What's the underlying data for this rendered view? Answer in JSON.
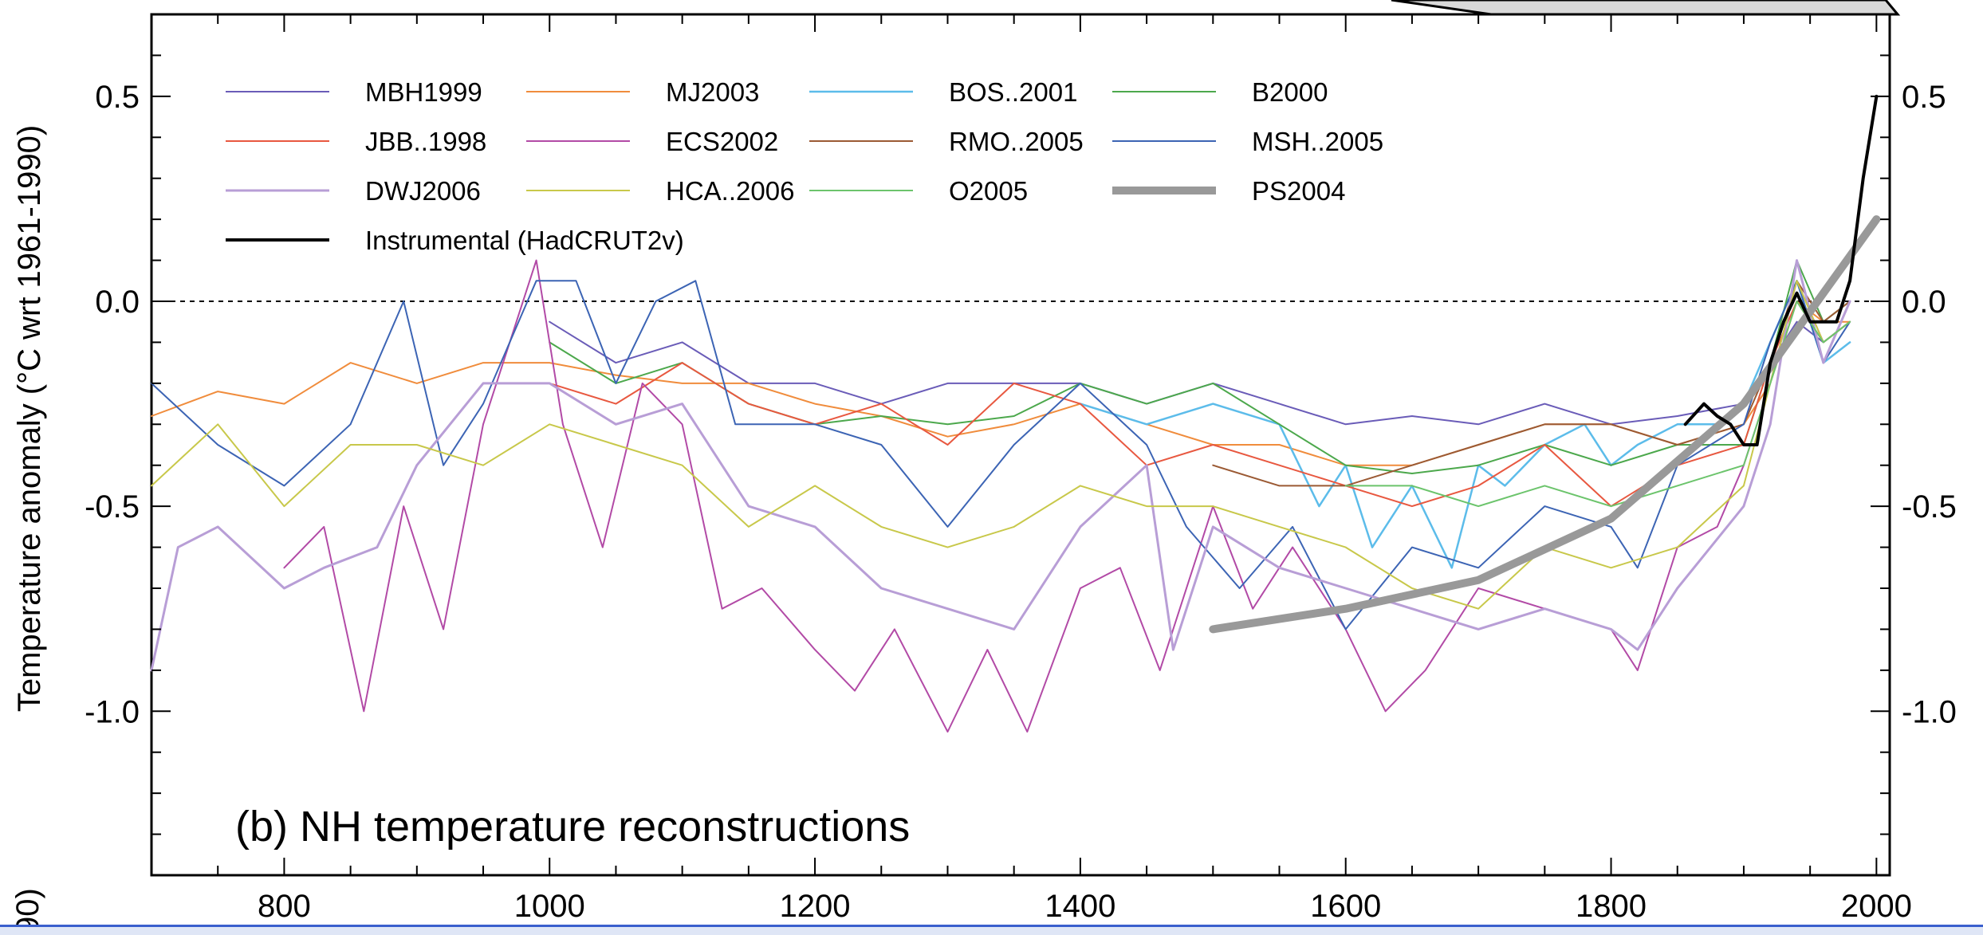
{
  "chart_data": {
    "type": "line",
    "title": "",
    "panel_label": "(b) NH temperature reconstructions",
    "ylabel": "Temperature anomaly  (°C wrt 1961-1990)",
    "xlabel": "",
    "xlim": [
      700,
      2010
    ],
    "ylim": [
      -1.4,
      0.7
    ],
    "x_ticks": [
      800,
      1000,
      1200,
      1400,
      1600,
      1800,
      2000
    ],
    "x_tick_labels": [
      "800",
      "1000",
      "1200",
      "1400",
      "1600",
      "1800",
      "2000"
    ],
    "y_ticks": [
      0.5,
      0.0,
      -0.5,
      -1.0
    ],
    "y_tick_labels": [
      "0.5",
      "0.0",
      "-0.5",
      "-1.0"
    ],
    "zero_line": true,
    "legend_position": "top-left",
    "series": [
      {
        "name": "MBH1999",
        "color": "#6a5cb8",
        "width": 2,
        "x": [
          1000,
          1050,
          1100,
          1150,
          1200,
          1250,
          1300,
          1350,
          1400,
          1450,
          1500,
          1550,
          1600,
          1650,
          1700,
          1750,
          1800,
          1850,
          1900,
          1920,
          1940,
          1960,
          1980
        ],
        "y": [
          -0.05,
          -0.15,
          -0.1,
          -0.2,
          -0.2,
          -0.25,
          -0.2,
          -0.2,
          -0.2,
          -0.25,
          -0.2,
          -0.25,
          -0.3,
          -0.28,
          -0.3,
          -0.25,
          -0.3,
          -0.28,
          -0.25,
          -0.15,
          -0.05,
          -0.1,
          -0.05
        ]
      },
      {
        "name": "MJ2003",
        "color": "#f08c3c",
        "width": 2,
        "x": [
          700,
          750,
          800,
          850,
          900,
          950,
          1000,
          1050,
          1100,
          1150,
          1200,
          1250,
          1300,
          1350,
          1400,
          1450,
          1500,
          1550,
          1600,
          1650,
          1700,
          1750,
          1800,
          1850,
          1900,
          1920,
          1940,
          1960,
          1980
        ],
        "y": [
          -0.28,
          -0.22,
          -0.25,
          -0.15,
          -0.2,
          -0.15,
          -0.15,
          -0.18,
          -0.2,
          -0.2,
          -0.25,
          -0.28,
          -0.33,
          -0.3,
          -0.25,
          -0.3,
          -0.35,
          -0.35,
          -0.4,
          -0.4,
          -0.35,
          -0.3,
          -0.3,
          -0.35,
          -0.3,
          -0.2,
          0.0,
          -0.05,
          -0.05
        ]
      },
      {
        "name": "BOS..2001",
        "color": "#5cbcea",
        "width": 2.5,
        "x": [
          1400,
          1450,
          1500,
          1550,
          1580,
          1600,
          1620,
          1650,
          1680,
          1700,
          1720,
          1750,
          1780,
          1800,
          1820,
          1850,
          1880,
          1900,
          1920,
          1940,
          1960,
          1980
        ],
        "y": [
          -0.25,
          -0.3,
          -0.25,
          -0.3,
          -0.5,
          -0.4,
          -0.6,
          -0.45,
          -0.65,
          -0.4,
          -0.45,
          -0.35,
          -0.3,
          -0.4,
          -0.35,
          -0.3,
          -0.3,
          -0.25,
          -0.1,
          0.05,
          -0.15,
          -0.1
        ]
      },
      {
        "name": "B2000",
        "color": "#4ca84c",
        "width": 2,
        "x": [
          1000,
          1050,
          1100,
          1150,
          1200,
          1250,
          1300,
          1350,
          1400,
          1450,
          1500,
          1550,
          1600,
          1650,
          1700,
          1750,
          1800,
          1850,
          1900,
          1920,
          1940,
          1960,
          1980
        ],
        "y": [
          -0.1,
          -0.2,
          -0.15,
          -0.25,
          -0.3,
          -0.28,
          -0.3,
          -0.28,
          -0.2,
          -0.25,
          -0.2,
          -0.3,
          -0.4,
          -0.42,
          -0.4,
          -0.35,
          -0.4,
          -0.35,
          -0.35,
          -0.15,
          0.1,
          -0.05,
          0.0
        ]
      },
      {
        "name": "JBB..1998",
        "color": "#e85840",
        "width": 2,
        "x": [
          1000,
          1050,
          1100,
          1150,
          1200,
          1250,
          1300,
          1350,
          1400,
          1450,
          1500,
          1550,
          1600,
          1650,
          1700,
          1750,
          1800,
          1850,
          1900,
          1920,
          1940,
          1960,
          1980
        ],
        "y": [
          -0.2,
          -0.25,
          -0.15,
          -0.25,
          -0.3,
          -0.25,
          -0.35,
          -0.2,
          -0.25,
          -0.4,
          -0.35,
          -0.4,
          -0.45,
          -0.5,
          -0.45,
          -0.35,
          -0.5,
          -0.4,
          -0.35,
          -0.15,
          0.0,
          -0.1,
          -0.05
        ]
      },
      {
        "name": "ECS2002",
        "color": "#b24aa6",
        "width": 2,
        "x": [
          800,
          830,
          860,
          890,
          920,
          950,
          990,
          1010,
          1040,
          1070,
          1100,
          1130,
          1160,
          1200,
          1230,
          1260,
          1300,
          1330,
          1360,
          1400,
          1430,
          1460,
          1500,
          1530,
          1560,
          1600,
          1630,
          1660,
          1700,
          1750,
          1800,
          1820,
          1850,
          1880,
          1900,
          1920,
          1940,
          1960,
          1980
        ],
        "y": [
          -0.65,
          -0.55,
          -1.0,
          -0.5,
          -0.8,
          -0.3,
          0.1,
          -0.3,
          -0.6,
          -0.2,
          -0.3,
          -0.75,
          -0.7,
          -0.85,
          -0.95,
          -0.8,
          -1.05,
          -0.85,
          -1.05,
          -0.7,
          -0.65,
          -0.9,
          -0.5,
          -0.75,
          -0.6,
          -0.8,
          -1.0,
          -0.9,
          -0.7,
          -0.75,
          -0.8,
          -0.9,
          -0.6,
          -0.55,
          -0.4,
          -0.2,
          0.05,
          -0.1,
          -0.05
        ]
      },
      {
        "name": "RMO..2005",
        "color": "#9b5a34",
        "width": 2,
        "x": [
          1500,
          1550,
          1600,
          1650,
          1700,
          1750,
          1800,
          1850,
          1900,
          1920,
          1940,
          1960,
          1980
        ],
        "y": [
          -0.4,
          -0.45,
          -0.45,
          -0.4,
          -0.35,
          -0.3,
          -0.3,
          -0.35,
          -0.3,
          -0.15,
          0.05,
          -0.05,
          0.0
        ]
      },
      {
        "name": "MSH..2005",
        "color": "#3c64b4",
        "width": 2,
        "x": [
          700,
          750,
          800,
          850,
          890,
          920,
          950,
          990,
          1020,
          1050,
          1080,
          1110,
          1140,
          1200,
          1250,
          1300,
          1350,
          1400,
          1450,
          1480,
          1520,
          1560,
          1600,
          1650,
          1700,
          1750,
          1800,
          1820,
          1850,
          1900,
          1920,
          1940,
          1960,
          1980
        ],
        "y": [
          -0.2,
          -0.35,
          -0.45,
          -0.3,
          0.0,
          -0.4,
          -0.25,
          0.05,
          0.05,
          -0.2,
          0.0,
          0.05,
          -0.3,
          -0.3,
          -0.35,
          -0.55,
          -0.35,
          -0.2,
          -0.35,
          -0.55,
          -0.7,
          -0.55,
          -0.8,
          -0.6,
          -0.65,
          -0.5,
          -0.55,
          -0.65,
          -0.4,
          -0.3,
          -0.1,
          0.05,
          -0.15,
          -0.05
        ]
      },
      {
        "name": "DWJ2006",
        "color": "#b89ed6",
        "width": 3,
        "x": [
          700,
          720,
          750,
          800,
          830,
          870,
          900,
          950,
          1000,
          1050,
          1100,
          1150,
          1200,
          1250,
          1300,
          1350,
          1400,
          1450,
          1470,
          1500,
          1550,
          1600,
          1650,
          1700,
          1750,
          1800,
          1820,
          1850,
          1900,
          1920,
          1940,
          1960,
          1980
        ],
        "y": [
          -0.9,
          -0.6,
          -0.55,
          -0.7,
          -0.65,
          -0.6,
          -0.4,
          -0.2,
          -0.2,
          -0.3,
          -0.25,
          -0.5,
          -0.55,
          -0.7,
          -0.75,
          -0.8,
          -0.55,
          -0.4,
          -0.85,
          -0.55,
          -0.65,
          -0.7,
          -0.75,
          -0.8,
          -0.75,
          -0.8,
          -0.85,
          -0.7,
          -0.5,
          -0.3,
          0.1,
          -0.15,
          0.0
        ]
      },
      {
        "name": "HCA..2006",
        "color": "#c8c84a",
        "width": 2,
        "x": [
          700,
          750,
          800,
          850,
          900,
          950,
          1000,
          1050,
          1100,
          1150,
          1200,
          1250,
          1300,
          1350,
          1400,
          1450,
          1500,
          1550,
          1600,
          1650,
          1700,
          1750,
          1800,
          1850,
          1900,
          1920,
          1940,
          1960,
          1980
        ],
        "y": [
          -0.45,
          -0.3,
          -0.5,
          -0.35,
          -0.35,
          -0.4,
          -0.3,
          -0.35,
          -0.4,
          -0.55,
          -0.45,
          -0.55,
          -0.6,
          -0.55,
          -0.45,
          -0.5,
          -0.5,
          -0.55,
          -0.6,
          -0.7,
          -0.75,
          -0.6,
          -0.65,
          -0.6,
          -0.45,
          -0.2,
          0.05,
          -0.1,
          -0.05
        ]
      },
      {
        "name": "O2005",
        "color": "#6cc46c",
        "width": 2,
        "x": [
          1600,
          1650,
          1700,
          1750,
          1800,
          1850,
          1900,
          1920,
          1940,
          1960,
          1980
        ],
        "y": [
          -0.45,
          -0.45,
          -0.5,
          -0.45,
          -0.5,
          -0.45,
          -0.4,
          -0.2,
          0.0,
          -0.1,
          -0.05
        ]
      },
      {
        "name": "PS2004",
        "color": "#999999",
        "width": 10,
        "x": [
          1500,
          1600,
          1700,
          1800,
          1900,
          2000
        ],
        "y": [
          -0.8,
          -0.75,
          -0.68,
          -0.53,
          -0.25,
          0.2
        ]
      },
      {
        "name": "Instrumental (HadCRUT2v)",
        "color": "#000000",
        "width": 4,
        "x": [
          1856,
          1870,
          1880,
          1890,
          1900,
          1910,
          1920,
          1930,
          1940,
          1950,
          1960,
          1970,
          1980,
          1990,
          2000
        ],
        "y": [
          -0.3,
          -0.25,
          -0.28,
          -0.3,
          -0.35,
          -0.35,
          -0.15,
          -0.05,
          0.02,
          -0.05,
          -0.05,
          -0.05,
          0.05,
          0.3,
          0.5
        ]
      }
    ]
  },
  "cutoff_text": "90)"
}
